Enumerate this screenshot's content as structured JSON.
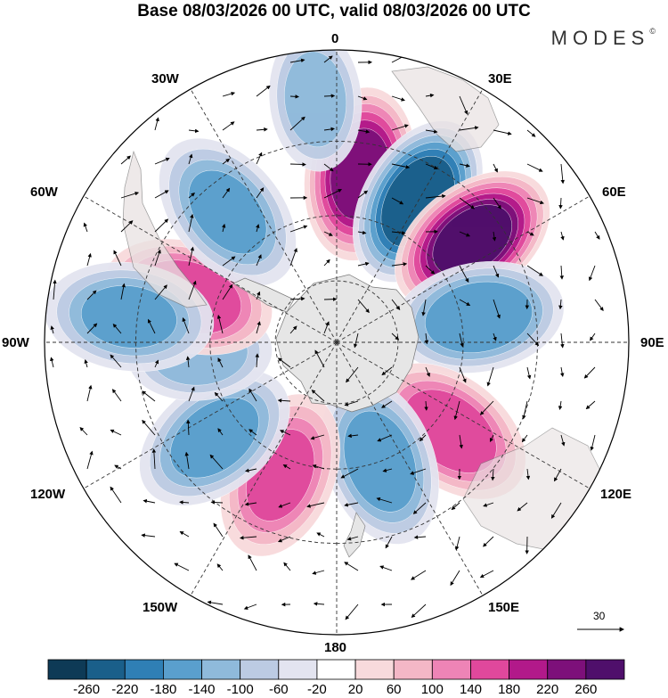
{
  "title": "Base 08/03/2026 00 UTC, valid 08/03/2026 00 UTC",
  "brand": "MODES",
  "brand_mark": "©",
  "longitude_labels": {
    "deg0": "0",
    "e30": "30E",
    "e60": "60E",
    "e90": "90E",
    "e120": "120E",
    "e150": "150E",
    "deg180": "180",
    "w150": "150W",
    "w120": "120W",
    "w90": "90W",
    "w60": "60W",
    "w30": "30W"
  },
  "reference_vector": "30",
  "colorbar": {
    "ticks": [
      "-260",
      "-220",
      "-180",
      "-140",
      "-100",
      "-60",
      "-20",
      "20",
      "60",
      "100",
      "140",
      "180",
      "220",
      "260"
    ],
    "colors": [
      "#0e3a56",
      "#1a5f8a",
      "#2f7fb5",
      "#5a9fcd",
      "#8fbadb",
      "#bccbe3",
      "#e3e4f0",
      "#ffffff",
      "#f8dadc",
      "#f4b7c6",
      "#ee84b6",
      "#e0489c",
      "#b2198a",
      "#7d107a",
      "#4f0f6b"
    ]
  },
  "chart_data": {
    "type": "polar-stereographic-map",
    "projection": "south polar stereographic",
    "title": "Base 08/03/2026 00 UTC, valid 08/03/2026 00 UTC",
    "contour_levels": [
      -260,
      -220,
      -180,
      -140,
      -100,
      -60,
      -20,
      20,
      60,
      100,
      140,
      180,
      220,
      260
    ],
    "reference_vector_magnitude": 30,
    "anomaly_centers": [
      {
        "sign": "positive",
        "lon": 8,
        "lat": -38,
        "peak": 230
      },
      {
        "sign": "negative",
        "lon": 30,
        "lat": -40,
        "peak": -250
      },
      {
        "sign": "positive",
        "lon": 53,
        "lat": -38,
        "peak": 270
      },
      {
        "sign": "negative",
        "lon": 80,
        "lat": -45,
        "peak": -170
      },
      {
        "sign": "positive",
        "lon": 128,
        "lat": -45,
        "peak": 160
      },
      {
        "sign": "negative",
        "lon": 160,
        "lat": -50,
        "peak": -160
      },
      {
        "sign": "positive",
        "lon": -157,
        "lat": -45,
        "peak": 140
      },
      {
        "sign": "negative",
        "lon": -128,
        "lat": -42,
        "peak": -150
      },
      {
        "sign": "negative",
        "lon": -95,
        "lat": -47,
        "peak": -100
      },
      {
        "sign": "positive",
        "lon": -73,
        "lat": -42,
        "peak": 170
      },
      {
        "sign": "negative",
        "lon": -83,
        "lat": -28,
        "peak": -140
      },
      {
        "sign": "negative",
        "lon": -40,
        "lat": -38,
        "peak": -140
      },
      {
        "sign": "negative",
        "lon": -5,
        "lat": -20,
        "peak": -100
      }
    ]
  }
}
